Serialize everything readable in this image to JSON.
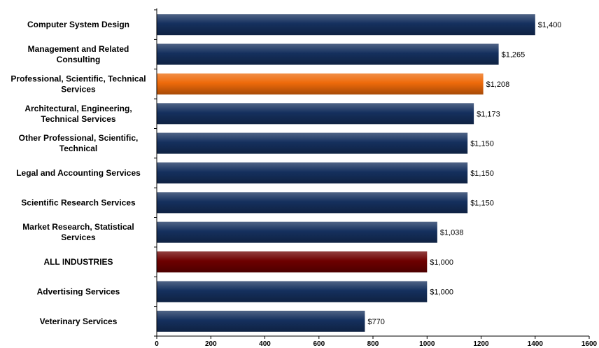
{
  "chart_data": {
    "type": "bar",
    "orientation": "horizontal",
    "title": "",
    "xlabel": "",
    "ylabel": "",
    "xlim": [
      0,
      1600
    ],
    "x_ticks": [
      0,
      200,
      400,
      600,
      800,
      1000,
      1200,
      1400,
      1600
    ],
    "x_tick_labels": [
      "0",
      "200",
      "400",
      "600",
      "800",
      "1000",
      "1200",
      "1400",
      "1600"
    ],
    "categories": [
      "Computer System Design",
      "Management and Related Consulting",
      "Professional, Scientific, Technical Services",
      "Architectural, Engineering, Technical Services",
      "Other Professional, Scientific, Technical",
      "Legal and Accounting Services",
      "Scientific Research Services",
      "Market Research, Statistical Services",
      "ALL INDUSTRIES",
      "Advertising Services",
      "Veterinary Services"
    ],
    "category_label_lines": [
      [
        "Computer System Design"
      ],
      [
        "Management and Related",
        "Consulting"
      ],
      [
        "Professional, Scientific, Technical",
        "Services"
      ],
      [
        "Architectural, Engineering,",
        "Technical Services"
      ],
      [
        "Other Professional, Scientific,",
        "Technical"
      ],
      [
        "Legal and Accounting Services"
      ],
      [
        "Scientific Research Services"
      ],
      [
        "Market Research, Statistical",
        "Services"
      ],
      [
        "ALL INDUSTRIES"
      ],
      [
        "Advertising Services"
      ],
      [
        "Veterinary Services"
      ]
    ],
    "values": [
      1400,
      1265,
      1208,
      1173,
      1150,
      1150,
      1150,
      1038,
      1000,
      1000,
      770
    ],
    "value_labels": [
      "$1,400",
      "$1,265",
      "$1,208",
      "$1,173",
      "$1,150",
      "$1,150",
      "$1,150",
      "$1,038",
      "$1,000",
      "$1,000",
      "$770"
    ],
    "bar_colors": [
      "#15305e",
      "#15305e",
      "#ee6a0a",
      "#15305e",
      "#15305e",
      "#15305e",
      "#15305e",
      "#15305e",
      "#6e0000",
      "#15305e",
      "#15305e"
    ],
    "grid": false,
    "legend": "none"
  }
}
